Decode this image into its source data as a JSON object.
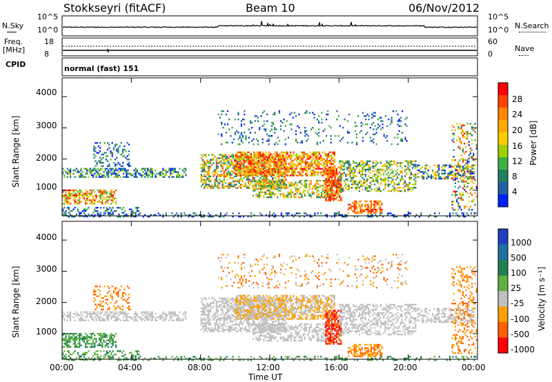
{
  "header": {
    "station": "Stokkseyri (fitACF)",
    "beam": "Beam 10",
    "date": "06/Nov/2012"
  },
  "nsky_panel": {
    "left_label": "N.Sky",
    "right_label": "N.Search",
    "left_ticks": [
      "10^5",
      "10^0"
    ],
    "right_ticks": [
      "10^5",
      "10^0"
    ]
  },
  "freq_panel": {
    "label_line1": "Freq.",
    "label_line2": "[MHz]",
    "left_ticks": [
      "18",
      "8"
    ],
    "right_ticks": [
      "60",
      "0"
    ],
    "right_label": "Nave"
  },
  "cpid_panel": {
    "label": "CPID",
    "value": "normal (fast) 151"
  },
  "power_panel": {
    "ylabel": "Slant Range [km]",
    "colorbar_label": "Power [dB]",
    "colorbar_ticks": [
      "28",
      "24",
      "20",
      "16",
      "12",
      "8",
      "4"
    ],
    "colors": [
      "#ff0000",
      "#ff4400",
      "#ff8800",
      "#ffaa00",
      "#ffcc00",
      "#a0d000",
      "#40b040",
      "#208060",
      "#2060a0",
      "#0020ff"
    ]
  },
  "velocity_panel": {
    "ylabel": "Slant Range [km]",
    "colorbar_label": "Velocity [m s⁻¹]",
    "colorbar_ticks": [
      "1000",
      "500",
      "100",
      "25",
      "-25",
      "-100",
      "-500",
      "-1000"
    ],
    "colors": [
      "#2040c0",
      "#2070a0",
      "#208050",
      "#60b040",
      "#c0c0c0",
      "#ffa000",
      "#ff6000",
      "#ff0000"
    ]
  },
  "chart_data": {
    "type": "heatmap",
    "xlabel": "Time UT",
    "x_ticks": [
      "00:00",
      "04:00",
      "08:00",
      "12:00",
      "16:00",
      "20:00",
      "00:00"
    ],
    "y_ticks": [
      "4000",
      "3000",
      "2000",
      "1000"
    ],
    "ylim": [
      180,
      4600
    ],
    "xlim_hours": [
      0,
      24
    ]
  }
}
